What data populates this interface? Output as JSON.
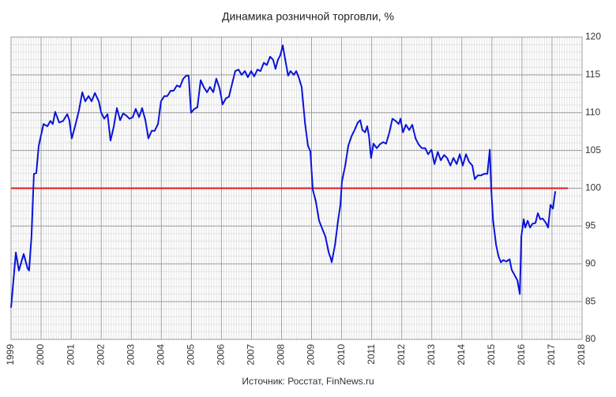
{
  "chart_data": {
    "type": "line",
    "title": "Динамика розничной торговли, %",
    "source": "Источник: Росстат, FinNews.ru",
    "x": [
      1999.0,
      1999.16,
      1999.26,
      1999.42,
      1999.55,
      1999.6,
      1999.68,
      1999.76,
      1999.84,
      1999.92,
      2000.08,
      2000.21,
      2000.31,
      2000.39,
      2000.47,
      2000.6,
      2000.73,
      2000.87,
      2000.94,
      2001.02,
      2001.13,
      2001.26,
      2001.37,
      2001.47,
      2001.58,
      2001.68,
      2001.79,
      2001.92,
      2002.0,
      2002.1,
      2002.21,
      2002.31,
      2002.42,
      2002.52,
      2002.63,
      2002.73,
      2002.84,
      2002.94,
      2003.05,
      2003.15,
      2003.26,
      2003.36,
      2003.47,
      2003.57,
      2003.68,
      2003.78,
      2003.89,
      2003.99,
      2004.1,
      2004.2,
      2004.31,
      2004.41,
      2004.52,
      2004.62,
      2004.73,
      2004.83,
      2004.91,
      2004.99,
      2005.1,
      2005.2,
      2005.31,
      2005.41,
      2005.52,
      2005.62,
      2005.73,
      2005.83,
      2005.94,
      2006.04,
      2006.15,
      2006.25,
      2006.36,
      2006.46,
      2006.57,
      2006.67,
      2006.78,
      2006.88,
      2006.99,
      2007.09,
      2007.2,
      2007.3,
      2007.41,
      2007.51,
      2007.62,
      2007.72,
      2007.8,
      2007.88,
      2007.96,
      2008.04,
      2008.12,
      2008.22,
      2008.3,
      2008.41,
      2008.49,
      2008.57,
      2008.67,
      2008.78,
      2008.88,
      2008.96,
      2009.04,
      2009.14,
      2009.25,
      2009.36,
      2009.46,
      2009.57,
      2009.64,
      2009.67,
      2009.78,
      2009.88,
      2009.96,
      2010.01,
      2010.12,
      2010.22,
      2010.33,
      2010.43,
      2010.54,
      2010.62,
      2010.69,
      2010.78,
      2010.85,
      2010.91,
      2010.98,
      2011.06,
      2011.17,
      2011.27,
      2011.38,
      2011.48,
      2011.59,
      2011.69,
      2011.8,
      2011.9,
      2011.96,
      2012.04,
      2012.14,
      2012.25,
      2012.35,
      2012.46,
      2012.56,
      2012.67,
      2012.78,
      2012.88,
      2012.99,
      2013.09,
      2013.2,
      2013.3,
      2013.41,
      2013.51,
      2013.62,
      2013.72,
      2013.83,
      2013.93,
      2014.03,
      2014.14,
      2014.24,
      2014.35,
      2014.43,
      2014.53,
      2014.64,
      2014.74,
      2014.85,
      2014.93,
      2014.98,
      2015.04,
      2015.14,
      2015.22,
      2015.3,
      2015.38,
      2015.48,
      2015.59,
      2015.66,
      2015.77,
      2015.85,
      2015.93,
      2015.98,
      2016.06,
      2016.11,
      2016.19,
      2016.27,
      2016.35,
      2016.45,
      2016.53,
      2016.61,
      2016.69,
      2016.8,
      2016.87,
      2016.95,
      2017.03,
      2017.11
    ],
    "series": [
      {
        "color": "#0a14d6",
        "values": [
          84.2,
          91.5,
          89.1,
          91.3,
          89.4,
          89.1,
          93.6,
          101.9,
          102,
          105.6,
          108.5,
          108.2,
          108.9,
          108.5,
          110.1,
          108.7,
          108.9,
          109.8,
          109,
          106.6,
          108.2,
          110.3,
          112.7,
          111.5,
          112.2,
          111.5,
          112.6,
          111.5,
          110,
          109.2,
          109.8,
          106.3,
          108.2,
          110.6,
          109,
          109.9,
          109.6,
          109.2,
          109.4,
          110.5,
          109.4,
          110.6,
          109,
          106.6,
          107.6,
          107.6,
          108.5,
          111.5,
          112.2,
          112.2,
          112.9,
          112.9,
          113.6,
          113.4,
          114.5,
          114.9,
          114.9,
          110,
          110.5,
          110.7,
          114.3,
          113.4,
          112.7,
          113.4,
          112.7,
          114.5,
          113.2,
          111.1,
          111.9,
          112.1,
          113.9,
          115.5,
          115.7,
          115,
          115.5,
          114.7,
          115.5,
          114.8,
          115.7,
          115.5,
          116.6,
          116.3,
          117.4,
          117,
          115.8,
          117,
          117.6,
          118.9,
          117.1,
          114.9,
          115.5,
          115,
          115.5,
          114.7,
          113.4,
          108.7,
          105.6,
          104.9,
          99.8,
          98.3,
          95.7,
          94.6,
          93.6,
          91.5,
          90.7,
          90.2,
          92.5,
          95.7,
          97.8,
          100.9,
          103,
          105.6,
          106.9,
          107.7,
          108.7,
          109,
          107.7,
          107.4,
          108.2,
          106.9,
          104,
          105.9,
          105.3,
          105.8,
          106.1,
          105.9,
          107.4,
          109.2,
          108.9,
          108.5,
          109.2,
          107.4,
          108.4,
          107.7,
          108.4,
          106.6,
          105.8,
          105.3,
          105.3,
          104.5,
          105.1,
          103.2,
          104.8,
          103.7,
          104.4,
          104,
          103,
          104,
          103.2,
          104.5,
          103,
          104.5,
          103.5,
          103,
          101.2,
          101.7,
          101.7,
          101.9,
          101.9,
          105.1,
          99.8,
          95.7,
          92.5,
          91,
          90.2,
          90.5,
          90.3,
          90.6,
          89.2,
          88.4,
          87.8,
          86,
          93.6,
          95.9,
          94.8,
          95.7,
          94.8,
          95.3,
          95.4,
          96.7,
          95.9,
          96,
          95.4,
          94.8,
          97.8,
          97.3,
          99.6
        ]
      }
    ],
    "reference_line": {
      "value": 100,
      "color": "#e8161b"
    },
    "xlim": [
      1999,
      2018
    ],
    "ylim": [
      80,
      120
    ],
    "xticks": [
      1999,
      2000,
      2001,
      2002,
      2003,
      2004,
      2005,
      2006,
      2007,
      2008,
      2009,
      2010,
      2011,
      2012,
      2013,
      2014,
      2015,
      2016,
      2017,
      2018
    ],
    "yticks": [
      80,
      85,
      90,
      95,
      100,
      105,
      110,
      115,
      120
    ],
    "grid": true,
    "y_axis_side": "right"
  }
}
